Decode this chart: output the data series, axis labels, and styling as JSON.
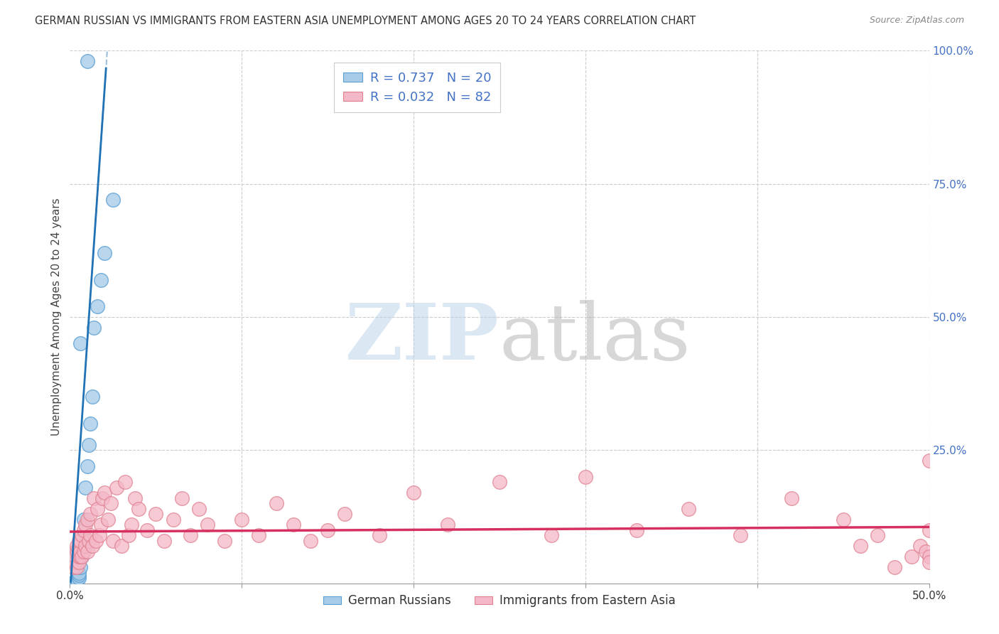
{
  "title": "GERMAN RUSSIAN VS IMMIGRANTS FROM EASTERN ASIA UNEMPLOYMENT AMONG AGES 20 TO 24 YEARS CORRELATION CHART",
  "source": "Source: ZipAtlas.com",
  "ylabel": "Unemployment Among Ages 20 to 24 years",
  "xlim": [
    0.0,
    0.5
  ],
  "ylim": [
    -0.02,
    1.02
  ],
  "ylim_data": [
    0.0,
    1.0
  ],
  "blue_R": 0.737,
  "blue_N": 20,
  "pink_R": 0.032,
  "pink_N": 82,
  "blue_color": "#a8cce8",
  "blue_edge_color": "#5a9fd4",
  "blue_line_color": "#2171b5",
  "pink_color": "#f4b8c8",
  "pink_edge_color": "#e08090",
  "pink_line_color": "#d63060",
  "background_color": "#ffffff",
  "grid_color": "#cccccc",
  "legend_label_blue": "German Russians",
  "legend_label_pink": "Immigrants from Eastern Asia",
  "blue_scatter_x": [
    0.003,
    0.004,
    0.004,
    0.005,
    0.005,
    0.005,
    0.006,
    0.007,
    0.007,
    0.008,
    0.009,
    0.01,
    0.011,
    0.012,
    0.013,
    0.014,
    0.016,
    0.018,
    0.02,
    0.025
  ],
  "blue_scatter_y": [
    0.005,
    0.003,
    0.008,
    0.01,
    0.015,
    0.02,
    0.03,
    0.05,
    0.08,
    0.12,
    0.18,
    0.22,
    0.26,
    0.3,
    0.35,
    0.48,
    0.52,
    0.57,
    0.62,
    0.72
  ],
  "blue_outlier_x": [
    0.01
  ],
  "blue_outlier_y": [
    0.98
  ],
  "blue_low_x": [
    0.006
  ],
  "blue_low_y": [
    0.45
  ],
  "pink_scatter_x": [
    0.001,
    0.002,
    0.002,
    0.003,
    0.003,
    0.003,
    0.004,
    0.004,
    0.004,
    0.005,
    0.005,
    0.005,
    0.005,
    0.006,
    0.006,
    0.006,
    0.007,
    0.007,
    0.008,
    0.008,
    0.009,
    0.009,
    0.01,
    0.01,
    0.011,
    0.012,
    0.012,
    0.013,
    0.014,
    0.015,
    0.016,
    0.017,
    0.018,
    0.019,
    0.02,
    0.022,
    0.024,
    0.025,
    0.027,
    0.03,
    0.032,
    0.034,
    0.036,
    0.038,
    0.04,
    0.045,
    0.05,
    0.055,
    0.06,
    0.065,
    0.07,
    0.075,
    0.08,
    0.09,
    0.1,
    0.11,
    0.12,
    0.13,
    0.14,
    0.15,
    0.16,
    0.18,
    0.2,
    0.22,
    0.25,
    0.28,
    0.3,
    0.33,
    0.36,
    0.39,
    0.42,
    0.45,
    0.46,
    0.47,
    0.48,
    0.49,
    0.495,
    0.498,
    0.5,
    0.5,
    0.5,
    0.5
  ],
  "pink_scatter_y": [
    0.04,
    0.03,
    0.05,
    0.04,
    0.06,
    0.05,
    0.03,
    0.06,
    0.07,
    0.04,
    0.05,
    0.07,
    0.08,
    0.05,
    0.06,
    0.08,
    0.05,
    0.09,
    0.06,
    0.1,
    0.07,
    0.11,
    0.06,
    0.12,
    0.08,
    0.09,
    0.13,
    0.07,
    0.16,
    0.08,
    0.14,
    0.09,
    0.11,
    0.16,
    0.17,
    0.12,
    0.15,
    0.08,
    0.18,
    0.07,
    0.19,
    0.09,
    0.11,
    0.16,
    0.14,
    0.1,
    0.13,
    0.08,
    0.12,
    0.16,
    0.09,
    0.14,
    0.11,
    0.08,
    0.12,
    0.09,
    0.15,
    0.11,
    0.08,
    0.1,
    0.13,
    0.09,
    0.17,
    0.11,
    0.19,
    0.09,
    0.2,
    0.1,
    0.14,
    0.09,
    0.16,
    0.12,
    0.07,
    0.09,
    0.03,
    0.05,
    0.07,
    0.06,
    0.05,
    0.04,
    0.23,
    0.1
  ]
}
